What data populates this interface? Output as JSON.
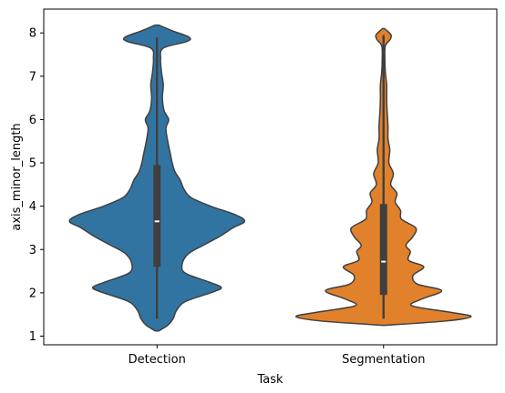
{
  "chart_data": {
    "type": "violin",
    "xlabel": "Task",
    "ylabel": "axis_minor_length",
    "ylim": [
      0.8,
      8.55
    ],
    "y_ticks": [
      1,
      2,
      3,
      4,
      5,
      6,
      7,
      8
    ],
    "y_tick_labels": [
      "1",
      "2",
      "3",
      "4",
      "5",
      "6",
      "7",
      "8"
    ],
    "categories": [
      "Detection",
      "Segmentation"
    ],
    "grid": false,
    "series": [
      {
        "name": "Detection",
        "color": "#3174a1",
        "stats": {
          "min": 1.4,
          "q1": 2.6,
          "median": 3.65,
          "q3": 4.95,
          "max": 7.9
        },
        "density": [
          [
            1.12,
            0.02
          ],
          [
            1.25,
            0.12
          ],
          [
            1.4,
            0.18
          ],
          [
            1.6,
            0.22
          ],
          [
            1.8,
            0.32
          ],
          [
            2.0,
            0.6
          ],
          [
            2.12,
            0.72
          ],
          [
            2.25,
            0.58
          ],
          [
            2.45,
            0.32
          ],
          [
            2.65,
            0.28
          ],
          [
            2.9,
            0.35
          ],
          [
            3.1,
            0.52
          ],
          [
            3.3,
            0.7
          ],
          [
            3.5,
            0.85
          ],
          [
            3.65,
            0.98
          ],
          [
            3.8,
            0.88
          ],
          [
            4.0,
            0.6
          ],
          [
            4.2,
            0.38
          ],
          [
            4.4,
            0.3
          ],
          [
            4.6,
            0.26
          ],
          [
            4.8,
            0.2
          ],
          [
            5.0,
            0.17
          ],
          [
            5.2,
            0.15
          ],
          [
            5.5,
            0.12
          ],
          [
            5.8,
            0.1
          ],
          [
            6.0,
            0.13
          ],
          [
            6.2,
            0.08
          ],
          [
            6.5,
            0.06
          ],
          [
            6.8,
            0.07
          ],
          [
            7.1,
            0.05
          ],
          [
            7.4,
            0.04
          ],
          [
            7.65,
            0.07
          ],
          [
            7.8,
            0.33
          ],
          [
            7.9,
            0.36
          ],
          [
            8.05,
            0.17
          ],
          [
            8.18,
            0.02
          ]
        ]
      },
      {
        "name": "Segmentation",
        "color": "#e1812c",
        "stats": {
          "min": 1.4,
          "q1": 1.95,
          "median": 2.72,
          "q3": 4.05,
          "max": 7.95
        },
        "density": [
          [
            1.25,
            0.02
          ],
          [
            1.35,
            0.7
          ],
          [
            1.45,
            0.98
          ],
          [
            1.55,
            0.75
          ],
          [
            1.7,
            0.32
          ],
          [
            1.85,
            0.42
          ],
          [
            2.05,
            0.65
          ],
          [
            2.2,
            0.38
          ],
          [
            2.4,
            0.33
          ],
          [
            2.6,
            0.45
          ],
          [
            2.75,
            0.28
          ],
          [
            2.95,
            0.3
          ],
          [
            3.1,
            0.25
          ],
          [
            3.3,
            0.33
          ],
          [
            3.5,
            0.36
          ],
          [
            3.7,
            0.2
          ],
          [
            3.9,
            0.19
          ],
          [
            4.1,
            0.13
          ],
          [
            4.3,
            0.15
          ],
          [
            4.5,
            0.08
          ],
          [
            4.75,
            0.11
          ],
          [
            5.0,
            0.06
          ],
          [
            5.3,
            0.07
          ],
          [
            5.55,
            0.05
          ],
          [
            5.85,
            0.05
          ],
          [
            6.2,
            0.04
          ],
          [
            6.5,
            0.035
          ],
          [
            6.8,
            0.035
          ],
          [
            7.1,
            0.02
          ],
          [
            7.4,
            0.015
          ],
          [
            7.7,
            0.02
          ],
          [
            7.85,
            0.075
          ],
          [
            7.95,
            0.085
          ],
          [
            8.05,
            0.04
          ],
          [
            8.1,
            0.01
          ]
        ]
      }
    ]
  }
}
